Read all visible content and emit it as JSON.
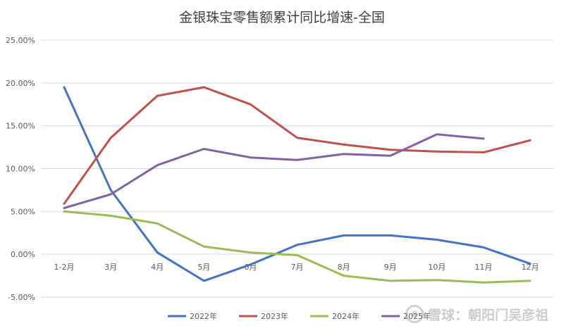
{
  "chart_data": {
    "type": "line",
    "title": "金银珠宝零售额累计同比增速-全国",
    "categories": [
      "1-2月",
      "3月",
      "4月",
      "5月",
      "6月",
      "7月",
      "8月",
      "9月",
      "10月",
      "11月",
      "12月"
    ],
    "ylim": [
      -5,
      25
    ],
    "yticks": [
      -5,
      0,
      5,
      10,
      15,
      20,
      25
    ],
    "ytick_labels": [
      "-5.00%",
      "0.00%",
      "5.00%",
      "10.00%",
      "15.00%",
      "20.00%",
      "25.00%"
    ],
    "grid": true,
    "legend_position": "bottom",
    "series": [
      {
        "name": "2022年",
        "color": "#4472C4",
        "values": [
          19.5,
          7.5,
          0.2,
          -3.1,
          -1.2,
          1.1,
          2.2,
          2.2,
          1.7,
          0.8,
          -1.1
        ]
      },
      {
        "name": "2023年",
        "color": "#C0504D",
        "values": [
          5.9,
          13.6,
          18.5,
          19.5,
          17.5,
          13.6,
          12.8,
          12.2,
          12.0,
          11.9,
          13.3
        ]
      },
      {
        "name": "2024年",
        "color": "#9BBB59",
        "values": [
          5.0,
          4.5,
          3.6,
          0.9,
          0.2,
          -0.1,
          -2.5,
          -3.1,
          -3.0,
          -3.3,
          -3.1
        ]
      },
      {
        "name": "2025年",
        "color": "#8064A2",
        "values": [
          5.4,
          7.0,
          10.4,
          12.3,
          11.3,
          11.0,
          11.7,
          11.5,
          14.0,
          13.5,
          null
        ]
      }
    ]
  },
  "watermark": {
    "text": "雪球：朝阳门吴彦祖"
  }
}
